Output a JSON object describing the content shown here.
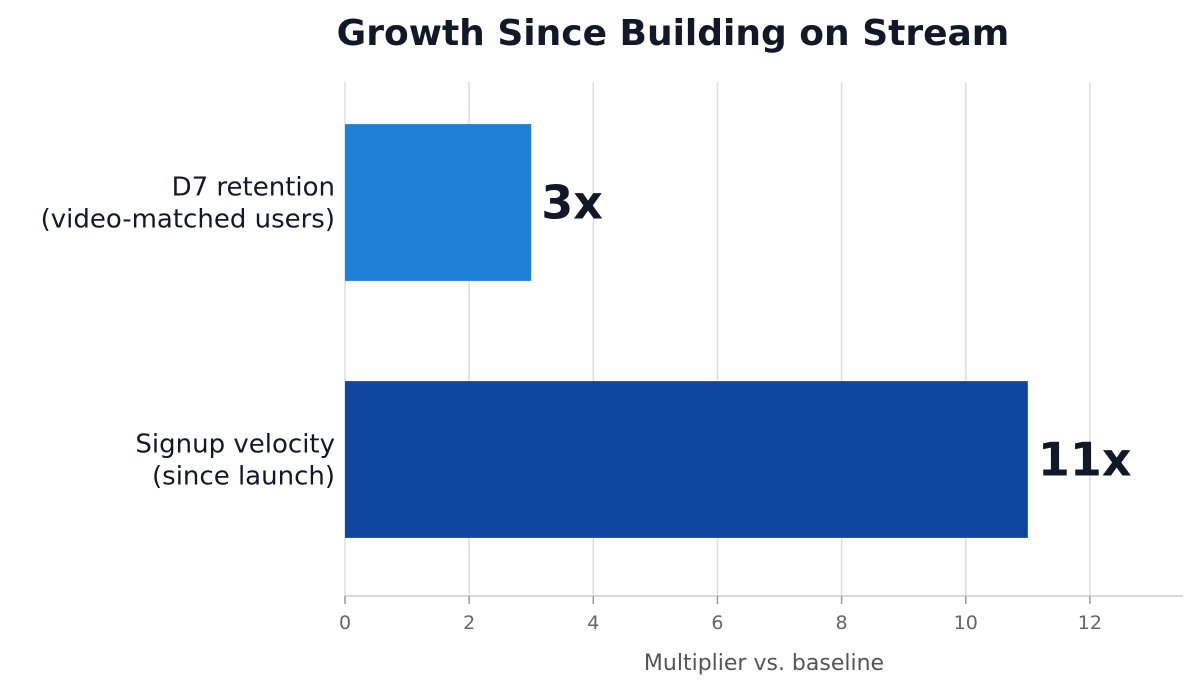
{
  "chart_data": {
    "type": "bar",
    "orientation": "horizontal",
    "title": "Growth Since Building on Stream",
    "xlabel": "Multiplier vs. baseline",
    "ylabel": "",
    "xlim": [
      0,
      13.5
    ],
    "xticks": [
      0,
      2,
      4,
      6,
      8,
      10,
      12
    ],
    "grid": true,
    "categories": [
      [
        "D7 retention",
        "(video-matched users)"
      ],
      [
        "Signup velocity",
        "(since launch)"
      ]
    ],
    "values": [
      3,
      11
    ],
    "data_labels": [
      "3x",
      "11x"
    ],
    "colors": [
      "#1e7fd6",
      "#0f47a0"
    ]
  }
}
